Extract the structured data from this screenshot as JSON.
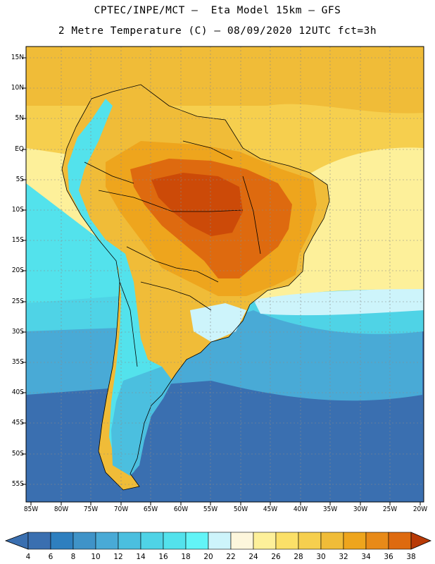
{
  "header": {
    "title_line1": "CPTEC/INPE/MCT –  Eta Model 15km – GFS",
    "title_line2": "2 Metre Temperature (C) – 08/09/2020 12UTC fct=3h"
  },
  "axes": {
    "lat_labels": [
      "15N",
      "10N",
      "5N",
      "EQ",
      "5S",
      "10S",
      "15S",
      "20S",
      "25S",
      "30S",
      "35S",
      "40S",
      "45S",
      "50S",
      "55S"
    ],
    "lon_labels": [
      "85W",
      "80W",
      "75W",
      "70W",
      "65W",
      "60W",
      "55W",
      "50W",
      "45W",
      "40W",
      "35W",
      "30W",
      "25W",
      "20W"
    ]
  },
  "colorbar": {
    "labels": [
      "4",
      "6",
      "8",
      "10",
      "12",
      "14",
      "16",
      "18",
      "20",
      "22",
      "24",
      "26",
      "28",
      "30",
      "32",
      "34",
      "36",
      "38"
    ],
    "colors": [
      "#3a6fb0",
      "#2e7fbf",
      "#3f93c8",
      "#49aad6",
      "#4bbfdf",
      "#4fd3e6",
      "#53e2ec",
      "#62f4f7",
      "#cdf4fb",
      "#fdf6dc",
      "#fdf09a",
      "#fbe068",
      "#f6cf4e",
      "#f0bc38",
      "#eea51d",
      "#e88a18",
      "#de6a0f",
      "#cc4a08",
      "#b83a06"
    ]
  },
  "map": {
    "region": "South America",
    "colors": {
      "ocean_south": "#3a6fb0",
      "ocean_mid": "#49aad6",
      "ocean_cool": "#4fd3e6",
      "ocean_north": "#f0bc38",
      "ocean_warm": "#f6cf4e",
      "land_warm": "#eea51d",
      "land_hot": "#de6a0f",
      "andes": "#53e2ec",
      "patagonia": "#4bbfdf"
    }
  }
}
